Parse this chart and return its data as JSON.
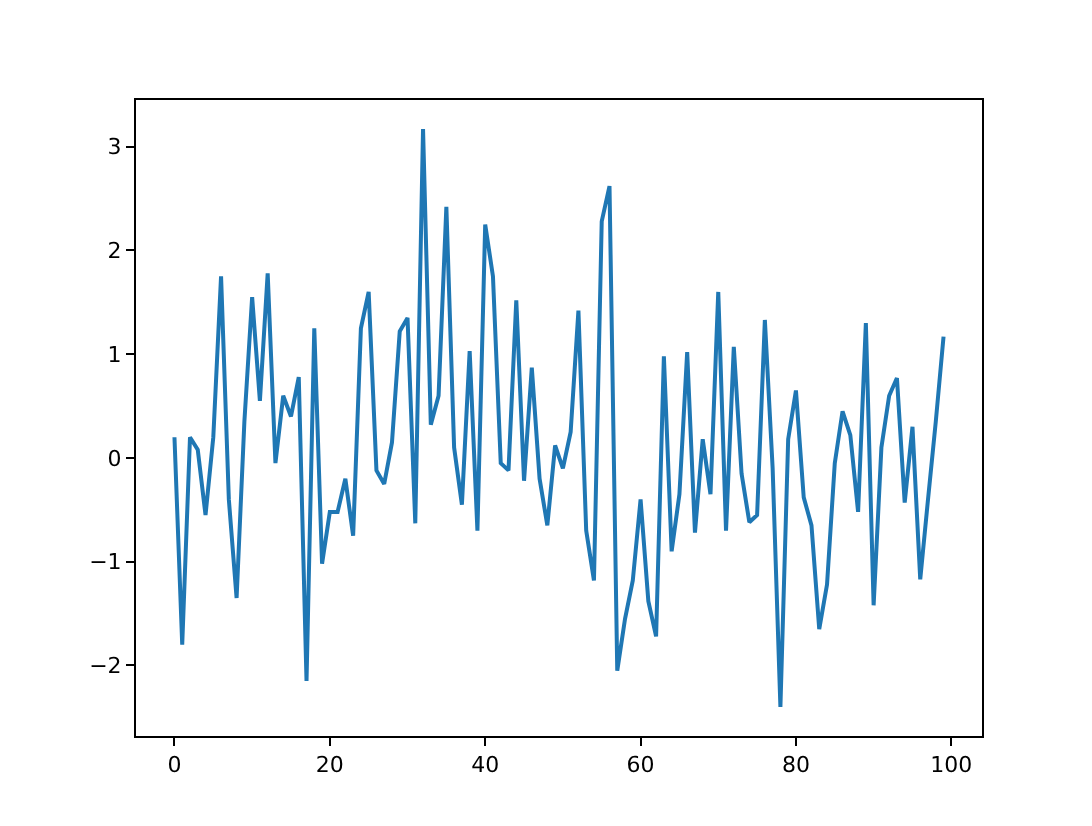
{
  "chart_data": {
    "type": "line",
    "x": [
      0,
      1,
      2,
      3,
      4,
      5,
      6,
      7,
      8,
      9,
      10,
      11,
      12,
      13,
      14,
      15,
      16,
      17,
      18,
      19,
      20,
      21,
      22,
      23,
      24,
      25,
      26,
      27,
      28,
      29,
      30,
      31,
      32,
      33,
      34,
      35,
      36,
      37,
      38,
      39,
      40,
      41,
      42,
      43,
      44,
      45,
      46,
      47,
      48,
      49,
      50,
      51,
      52,
      53,
      54,
      55,
      56,
      57,
      58,
      59,
      60,
      61,
      62,
      63,
      64,
      65,
      66,
      67,
      68,
      69,
      70,
      71,
      72,
      73,
      74,
      75,
      76,
      77,
      78,
      79,
      80,
      81,
      82,
      83,
      84,
      85,
      86,
      87,
      88,
      89,
      90,
      91,
      92,
      93,
      94,
      95,
      96,
      97,
      98,
      99
    ],
    "series": [
      {
        "color": "#1f77b4",
        "values": [
          0.2,
          -1.8,
          0.2,
          0.08,
          -0.55,
          0.2,
          1.75,
          -0.4,
          -1.35,
          0.35,
          1.55,
          0.55,
          1.78,
          -0.05,
          0.6,
          0.4,
          0.78,
          -2.15,
          1.25,
          -1.02,
          -0.52,
          -0.52,
          -0.2,
          -0.75,
          1.25,
          1.6,
          -0.12,
          -0.25,
          0.15,
          1.22,
          1.35,
          -0.63,
          3.17,
          0.32,
          0.6,
          2.42,
          0.1,
          -0.45,
          1.03,
          -0.7,
          2.25,
          1.75,
          -0.05,
          -0.12,
          1.52,
          -0.22,
          0.87,
          -0.2,
          -0.65,
          0.12,
          -0.1,
          0.25,
          1.42,
          -0.7,
          -1.18,
          2.28,
          2.62,
          -2.05,
          -1.55,
          -1.18,
          -0.4,
          -1.38,
          -1.72,
          0.98,
          -0.9,
          -0.35,
          1.02,
          -0.72,
          0.18,
          -0.35,
          1.6,
          -0.7,
          1.07,
          -0.15,
          -0.62,
          -0.55,
          1.33,
          -0.1,
          -2.4,
          0.18,
          0.65,
          -0.38,
          -0.65,
          -1.65,
          -1.22,
          -0.05,
          0.45,
          0.22,
          -0.52,
          1.3,
          -1.42,
          0.1,
          0.6,
          0.77,
          -0.43,
          0.3,
          -1.17,
          -0.4,
          0.35,
          1.17
        ]
      }
    ],
    "xlim": [
      -4.95,
      103.95
    ],
    "ylim": [
      -2.68,
      3.45
    ],
    "xticks": [
      0,
      20,
      40,
      60,
      80,
      100
    ],
    "yticks": [
      -2,
      -1,
      0,
      1,
      2,
      3
    ],
    "marker": "none",
    "line_style": "solid"
  }
}
